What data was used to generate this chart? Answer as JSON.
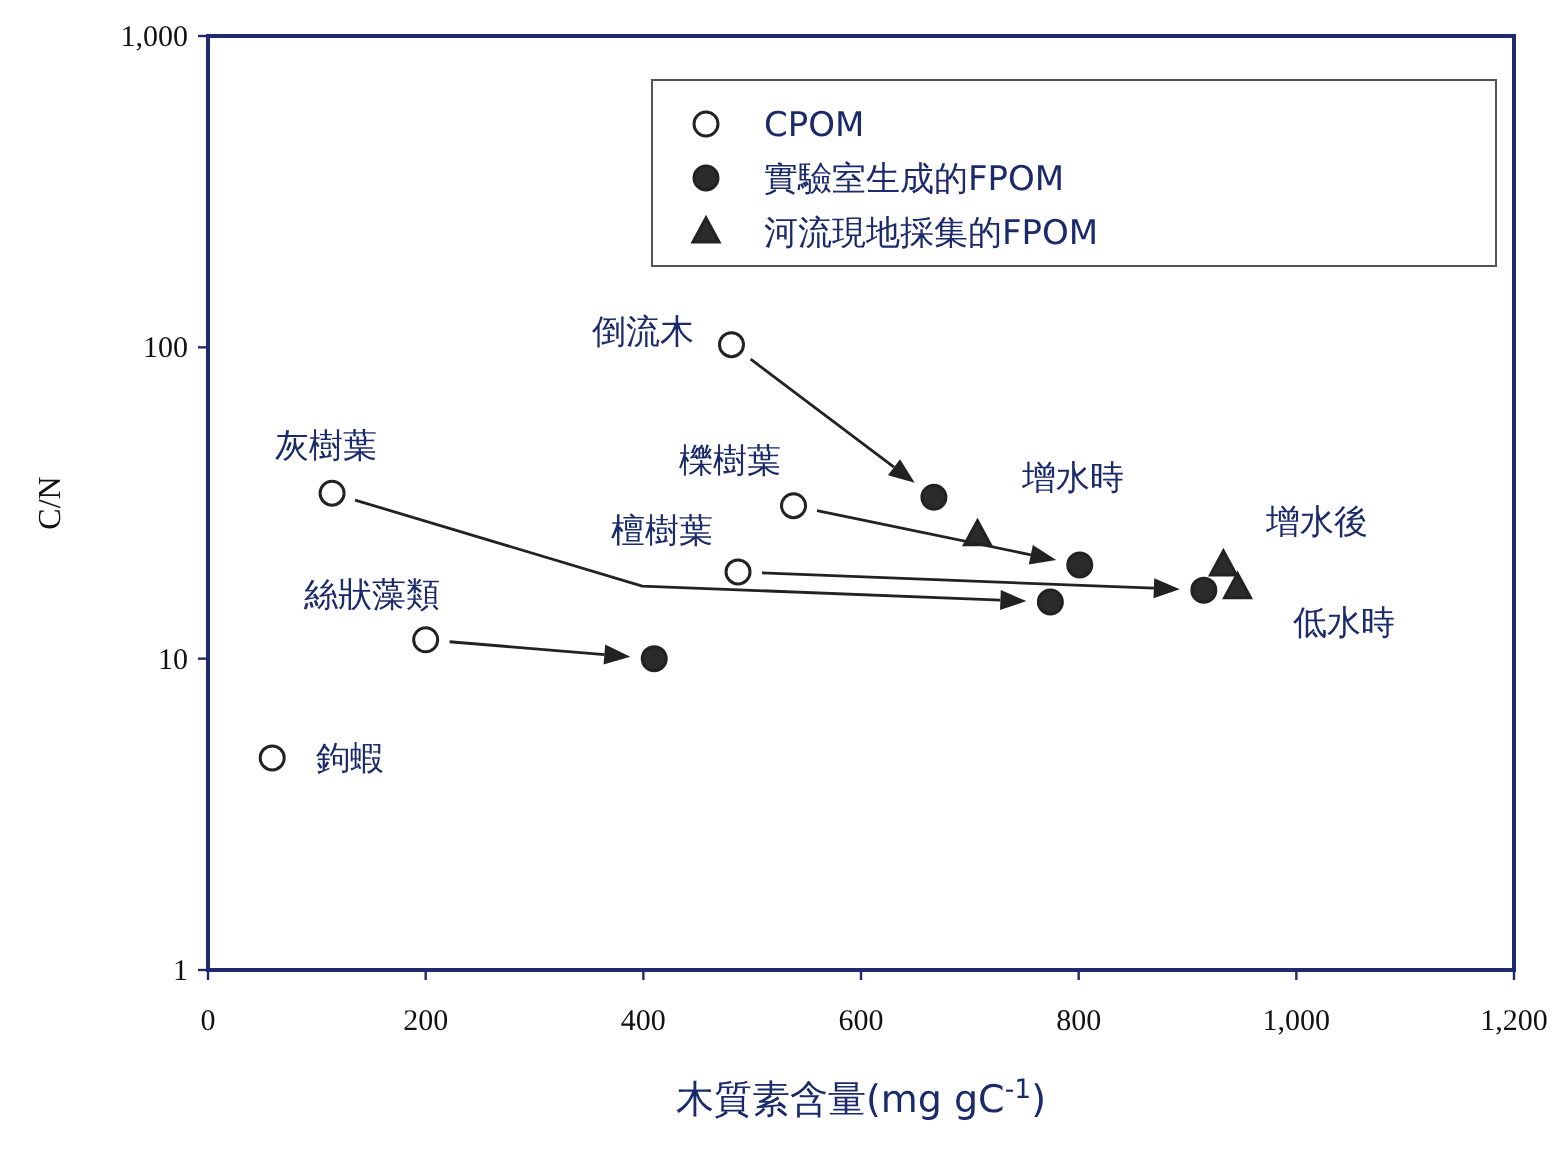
{
  "chart_data": {
    "type": "scatter",
    "xlabel": "木質素含量(mg gC$^{-1}$)",
    "ylabel": "C/N",
    "log": "y",
    "grid": false,
    "legend": "top right",
    "xlim": [
      0,
      1200
    ],
    "ylim": [
      1,
      1000
    ],
    "xticks": [
      0,
      200,
      400,
      600,
      800,
      {
        "value": 1000,
        "label": "1,000"
      },
      {
        "value": 1200,
        "label": "1,200"
      }
    ],
    "yticks": [
      1,
      10,
      100,
      {
        "value": 1000,
        "label": "1,000"
      }
    ],
    "series": [
      {
        "name": "CPOM",
        "color": "#ffffff",
        "marker": "circle",
        "x": [
          481,
          114,
          538,
          487,
          200,
          59
        ],
        "values": [
          102,
          34,
          31,
          19,
          11.5,
          4.8
        ]
      },
      {
        "name": "實驗室生成的FPOM",
        "color": "#2b2b2b",
        "marker": "circle",
        "x": [
          667,
          801,
          774,
          915,
          410
        ],
        "values": [
          33,
          20,
          15.2,
          16.6,
          10
        ]
      },
      {
        "name": "河流現地採集的FPOM",
        "color": "#2b2b2b",
        "marker": "triangle",
        "x": [
          707,
          933,
          946
        ],
        "values": [
          25,
          20,
          16.9
        ]
      }
    ],
    "annotations": [
      {
        "text": "倒流木",
        "x": 481,
        "y": 102
      },
      {
        "text": "灰樹葉",
        "x": 114,
        "y": 34
      },
      {
        "text": "櫟樹葉",
        "x": 538,
        "y": 31
      },
      {
        "text": "檀樹葉",
        "x": 487,
        "y": 19
      },
      {
        "text": "絲狀藻類",
        "x": 200,
        "y": 11.5
      },
      {
        "text": "鉤蝦",
        "x": 59,
        "y": 4.8
      },
      {
        "text": "增水時",
        "x": 707,
        "y": 25
      },
      {
        "text": "增水後",
        "x": 933,
        "y": 20
      },
      {
        "text": "低水時",
        "x": 946,
        "y": 16.9
      }
    ]
  }
}
